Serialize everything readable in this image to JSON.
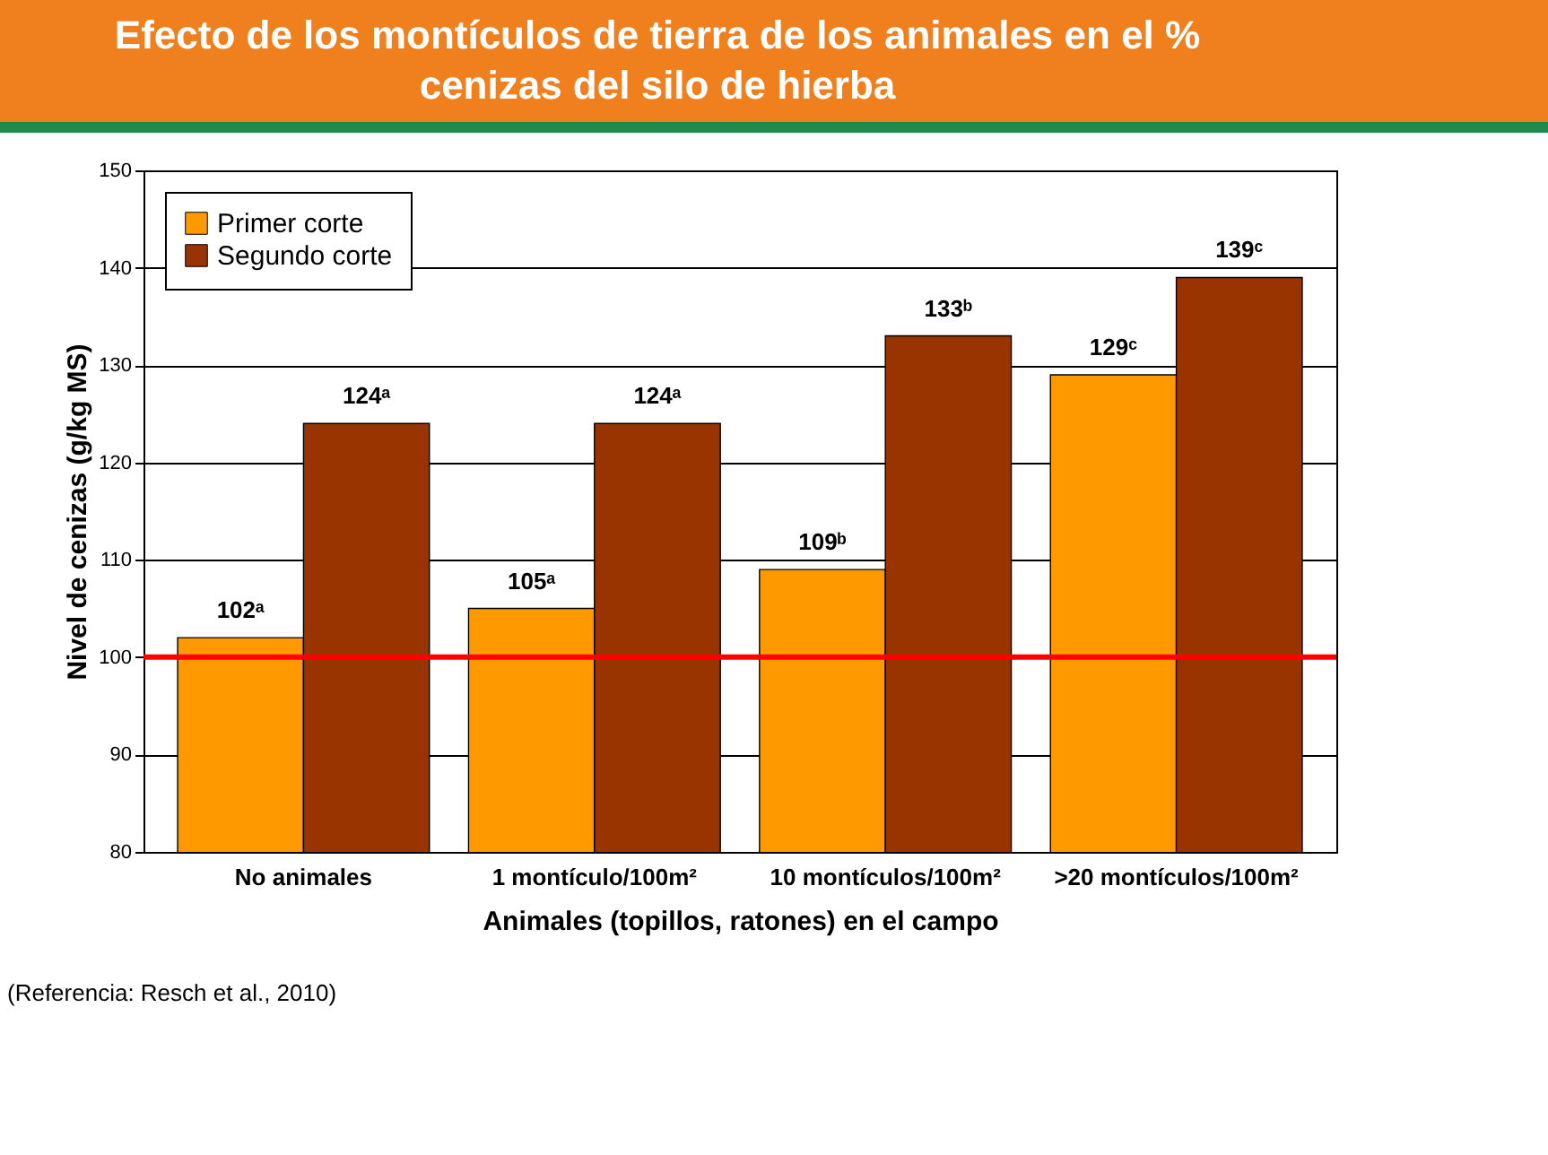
{
  "chart_data": {
    "type": "bar",
    "title": "Efecto de los montículos de tierra de los animales en el % cenizas del silo de hierba",
    "xlabel": "Animales (topillos, ratones) en el campo",
    "ylabel": "Nivel de cenizas (g/kg MS)",
    "categories": [
      "No animales",
      "1 montículo/100m²",
      "10 montículos/100m²",
      ">20 montículos/100m²"
    ],
    "series": [
      {
        "name": "Primer corte",
        "color": "#ff9900",
        "values": [
          102,
          105,
          109,
          129
        ],
        "value_labels": [
          "102ᵃ",
          "105ᵃ",
          "109ᵇ",
          "129ᶜ"
        ]
      },
      {
        "name": "Segundo corte",
        "color": "#993300",
        "values": [
          124,
          124,
          133,
          139
        ],
        "value_labels": [
          "124ᵃ",
          "124ᵃ",
          "133ᵇ",
          "139ᶜ"
        ]
      }
    ],
    "ylim": [
      80,
      150
    ],
    "yticks": [
      80,
      90,
      100,
      110,
      120,
      130,
      140,
      150
    ],
    "grid": "y",
    "legend": "top left",
    "ref_lines": [
      {
        "axis": "y",
        "value": 100,
        "color": "#ff0000"
      }
    ],
    "annotations": [
      "(Referencia: Resch et al., 2010)"
    ]
  }
}
